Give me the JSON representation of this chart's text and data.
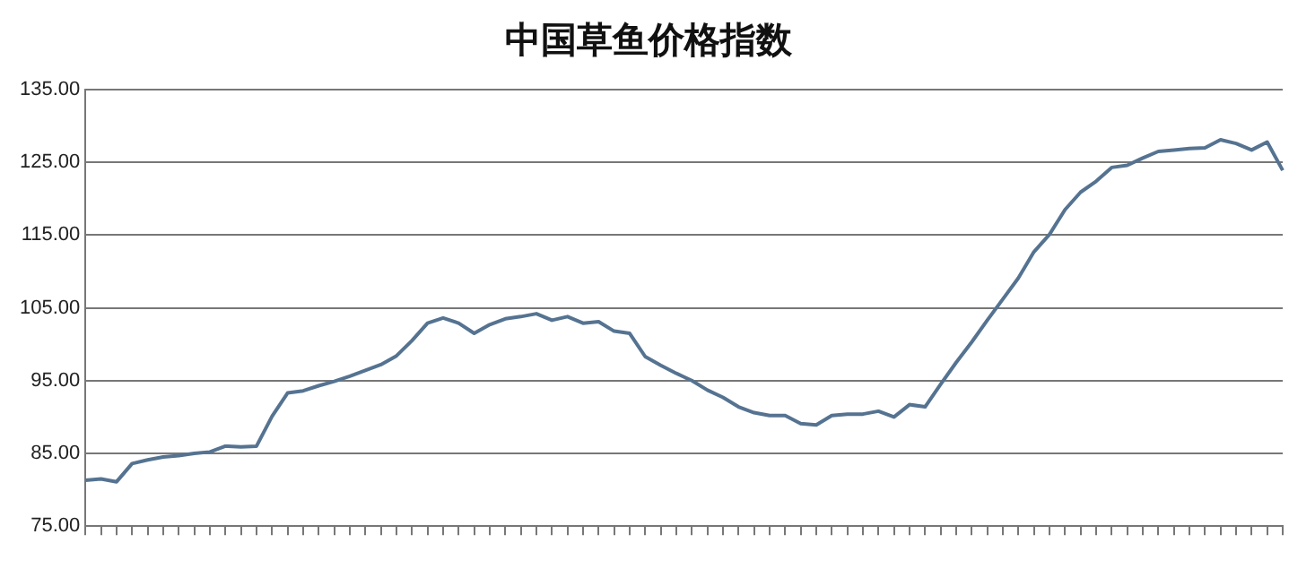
{
  "chart_data": {
    "type": "line",
    "title": "中国草鱼价格指数",
    "categories": [
      null,
      null,
      null,
      null,
      null,
      null,
      null,
      null,
      null,
      null,
      null,
      null,
      null,
      null,
      null,
      null,
      null,
      null,
      null,
      null,
      null,
      null,
      null,
      null,
      null,
      null,
      null,
      null,
      null,
      null,
      null,
      null,
      null,
      null,
      null,
      null,
      null,
      null,
      null,
      null,
      null,
      null,
      null,
      null,
      null,
      null,
      null,
      null,
      null,
      null,
      null,
      null,
      null,
      null,
      null,
      null,
      null,
      null,
      null,
      null,
      null,
      null,
      null,
      null,
      null,
      null,
      null,
      null,
      null,
      null,
      null,
      null,
      null,
      null,
      null,
      null,
      null,
      null
    ],
    "series": [
      {
        "color": "#557391",
        "values": [
          81.3,
          81.5,
          81.1,
          83.6,
          84.1,
          84.5,
          84.7,
          85.0,
          85.2,
          86.0,
          85.9,
          86.0,
          90.1,
          93.3,
          93.6,
          94.3,
          94.9,
          95.6,
          96.4,
          97.2,
          98.4,
          100.5,
          102.9,
          103.6,
          102.9,
          101.5,
          102.7,
          103.5,
          103.8,
          104.2,
          103.3,
          103.8,
          102.9,
          103.1,
          101.8,
          101.5,
          98.3,
          97.1,
          96.0,
          95.0,
          93.7,
          92.7,
          91.4,
          90.6,
          90.2,
          90.2,
          89.1,
          88.9,
          90.2,
          90.4,
          90.4,
          90.8,
          90.0,
          91.7,
          91.4,
          94.5,
          97.5,
          100.3,
          103.3,
          106.2,
          109.1,
          112.7,
          115.1,
          118.5,
          120.9,
          122.4,
          124.3,
          124.6,
          125.6,
          126.5,
          126.7,
          126.9,
          127.0,
          128.1,
          127.6,
          126.7,
          127.8,
          123.9
        ]
      }
    ],
    "ylim": [
      75,
      135
    ],
    "yticks": [
      {
        "value": 75,
        "label": "75.00"
      },
      {
        "value": 85,
        "label": "85.00"
      },
      {
        "value": 95,
        "label": "95.00"
      },
      {
        "value": 105,
        "label": "105.00"
      },
      {
        "value": 115,
        "label": "115.00"
      },
      {
        "value": 125,
        "label": "125.00"
      },
      {
        "value": 135,
        "label": "135.00"
      }
    ],
    "grid": "y",
    "legend": false,
    "marker": "none",
    "line_style": "solid"
  }
}
